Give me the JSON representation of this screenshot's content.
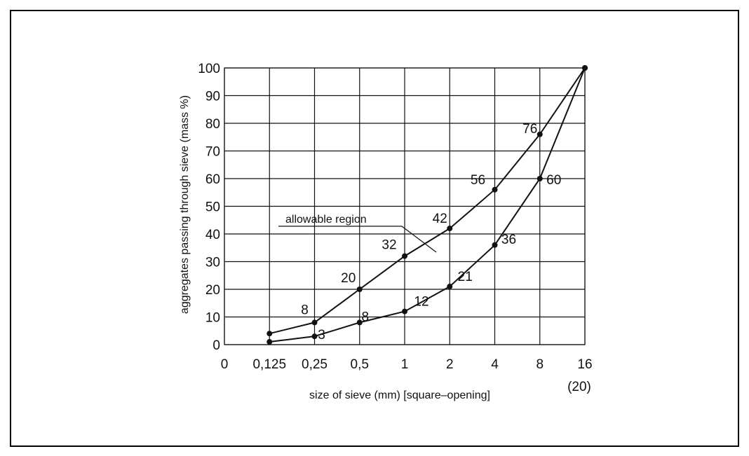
{
  "chart_data": {
    "type": "line",
    "xlabel": "size of sieve (mm) [square–opening]",
    "ylabel": "aggregates passing through sieve (mass %)",
    "x_ticks": [
      "0",
      "0,125",
      "0,25",
      "0,5",
      "1",
      "2",
      "4",
      "8",
      "16"
    ],
    "x_extra_label": "(20)",
    "y_ticks": [
      0,
      10,
      20,
      30,
      40,
      50,
      60,
      70,
      80,
      90,
      100
    ],
    "ylim": [
      0,
      100
    ],
    "annotation": "allowable region",
    "series": [
      {
        "x": [
          "0,125",
          "0,25",
          "0,5",
          "1",
          "2",
          "4",
          "8",
          "16"
        ],
        "values": [
          4,
          8,
          20,
          32,
          42,
          56,
          76,
          100
        ],
        "point_labels": [
          "",
          "8",
          "20",
          "32",
          "42",
          "56",
          "76",
          ""
        ]
      },
      {
        "x": [
          "0,125",
          "0,25",
          "0,5",
          "1",
          "2",
          "4",
          "8",
          "16"
        ],
        "values": [
          1,
          3,
          8,
          12,
          21,
          36,
          60,
          100
        ],
        "point_labels": [
          "",
          "3",
          "8",
          "12",
          "21",
          "36",
          "60",
          ""
        ]
      }
    ]
  }
}
